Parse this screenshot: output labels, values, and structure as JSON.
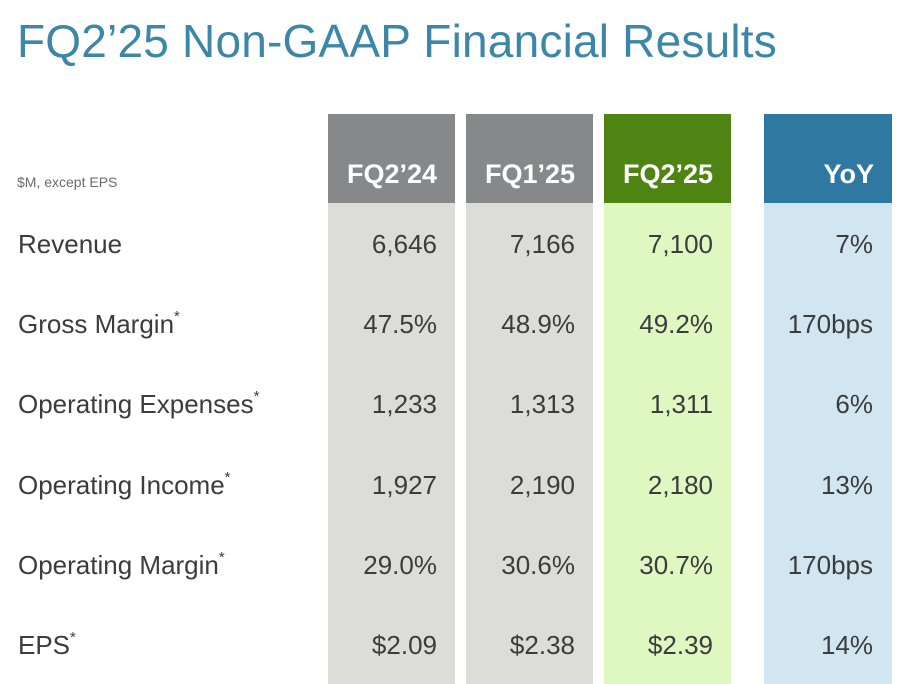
{
  "title": "FQ2’25 Non-GAAP Financial Results",
  "units_note": "$M, except EPS",
  "columns": [
    "FQ2’24",
    "FQ1’25",
    "FQ2’25",
    "YoY"
  ],
  "rows": [
    {
      "label": "Revenue",
      "footnote": "",
      "values": [
        "6,646",
        "7,166",
        "7,100",
        "7%"
      ]
    },
    {
      "label": "Gross Margin",
      "footnote": "*",
      "values": [
        "47.5%",
        "48.9%",
        "49.2%",
        "170bps"
      ]
    },
    {
      "label": "Operating Expenses",
      "footnote": "*",
      "values": [
        "1,233",
        "1,313",
        "1,311",
        "6%"
      ]
    },
    {
      "label": "Operating Income",
      "footnote": "*",
      "values": [
        "1,927",
        "2,190",
        "2,180",
        "13%"
      ]
    },
    {
      "label": "Operating Margin",
      "footnote": "*",
      "values": [
        "29.0%",
        "30.6%",
        "30.7%",
        "170bps"
      ]
    },
    {
      "label": "EPS",
      "footnote": "*",
      "values": [
        "$2.09",
        "$2.38",
        "$2.39",
        "14%"
      ]
    }
  ],
  "colors": {
    "title": "#3b86a9",
    "header_gray": "#878889",
    "header_green": "#4e8512",
    "header_blue": "#2e78a1",
    "body_gray": "#dcdcd8",
    "body_green": "#dff7c1",
    "body_blue": "#d2e6f2"
  }
}
